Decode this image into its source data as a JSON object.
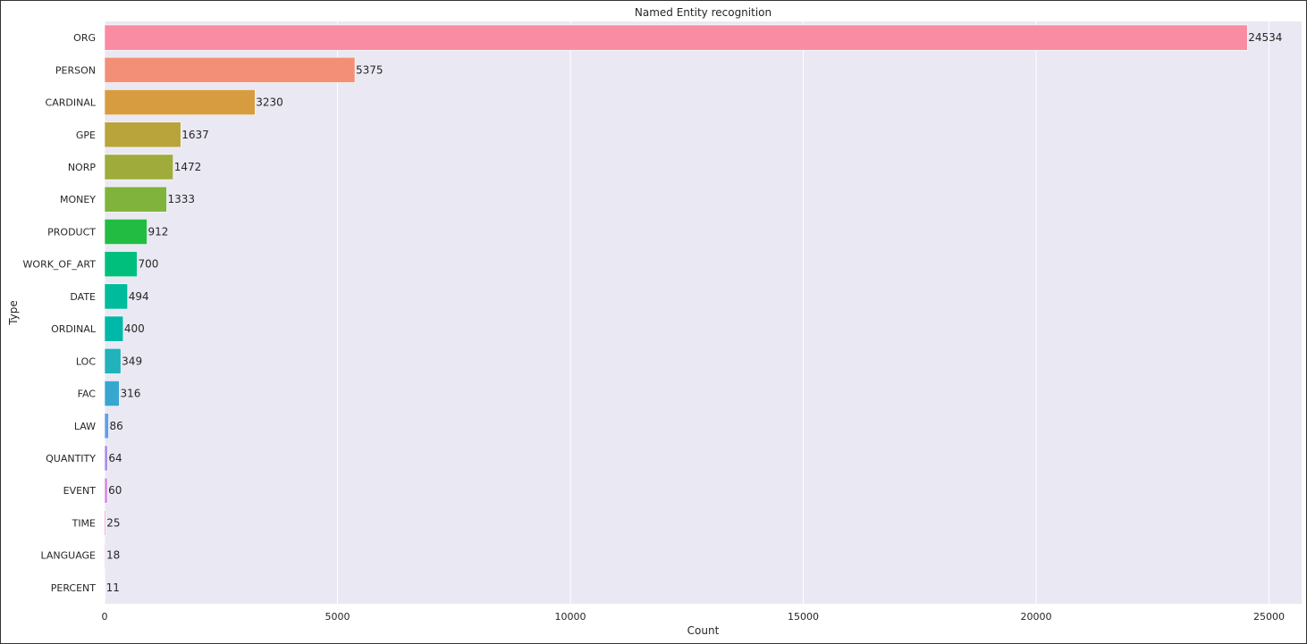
{
  "chart_data": {
    "type": "bar",
    "orientation": "horizontal",
    "title": "Named Entity recognition",
    "xlabel": "Count",
    "ylabel": "Type",
    "xlim": [
      0,
      25700
    ],
    "xticks": [
      0,
      5000,
      10000,
      15000,
      20000,
      25000
    ],
    "grid": true,
    "legend": "none",
    "categories": [
      "ORG",
      "PERSON",
      "CARDINAL",
      "GPE",
      "NORP",
      "MONEY",
      "PRODUCT",
      "WORK_OF_ART",
      "DATE",
      "ORDINAL",
      "LOC",
      "FAC",
      "LAW",
      "QUANTITY",
      "EVENT",
      "TIME",
      "LANGUAGE",
      "PERCENT"
    ],
    "values": [
      24534,
      5375,
      3230,
      1637,
      1472,
      1333,
      912,
      700,
      494,
      400,
      349,
      316,
      86,
      64,
      60,
      25,
      18,
      11
    ],
    "colors": [
      "#f98ba2",
      "#f48f77",
      "#d89c40",
      "#b9a43b",
      "#9fab3b",
      "#7fb33b",
      "#22bc42",
      "#00bf7d",
      "#00bb9c",
      "#00b8a8",
      "#21b2bb",
      "#38a7d0",
      "#62a0e6",
      "#a98fe9",
      "#d484e7",
      "#f97fd0",
      "#fc85c0",
      "#fc89b0"
    ]
  }
}
